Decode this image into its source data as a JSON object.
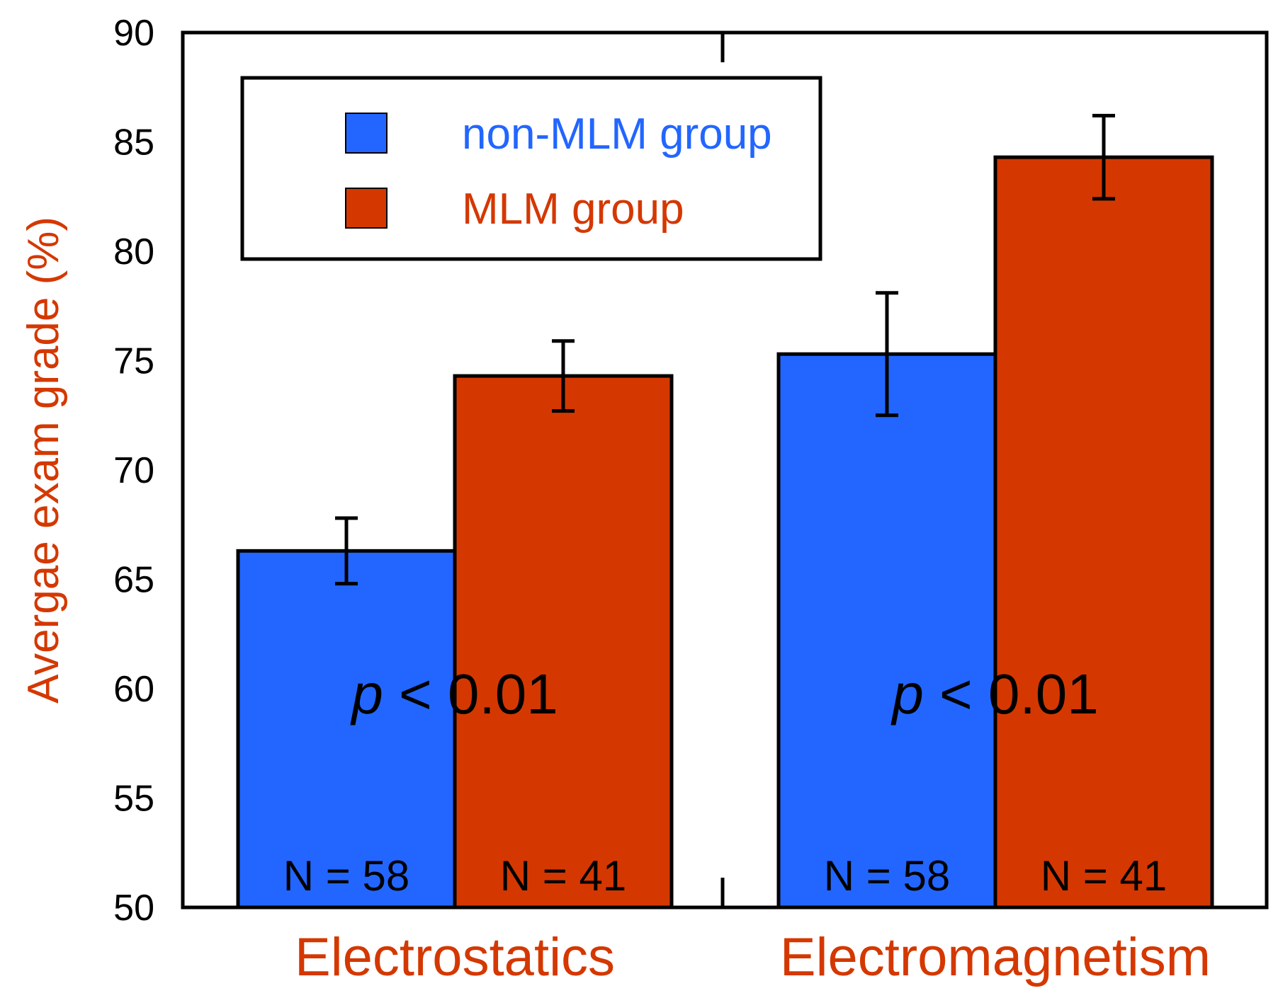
{
  "chart_data": {
    "type": "bar",
    "title": "",
    "xlabel": "",
    "ylabel": "Avergae exam grade (%)",
    "ylim": [
      50,
      90
    ],
    "yticks": [
      50,
      55,
      60,
      65,
      70,
      75,
      80,
      85,
      90
    ],
    "categories": [
      "Electrostatics",
      "Electromagnetism"
    ],
    "series": [
      {
        "name": "non-MLM group",
        "color": "#2266ff",
        "values": [
          66.3,
          75.3
        ],
        "errors": [
          1.5,
          2.8
        ],
        "n_labels": [
          "N = 58",
          "N = 58"
        ]
      },
      {
        "name": "MLM group",
        "color": "#d43800",
        "values": [
          74.3,
          84.3
        ],
        "errors": [
          1.6,
          1.9
        ],
        "n_labels": [
          "N = 41",
          "N = 41"
        ]
      }
    ],
    "annotations": [
      {
        "p_symbol": "p",
        "p_rest": " < 0.01"
      },
      {
        "p_symbol": "p",
        "p_rest": " < 0.01"
      }
    ],
    "legend_position": "top-left",
    "label_color": "#d43800"
  }
}
